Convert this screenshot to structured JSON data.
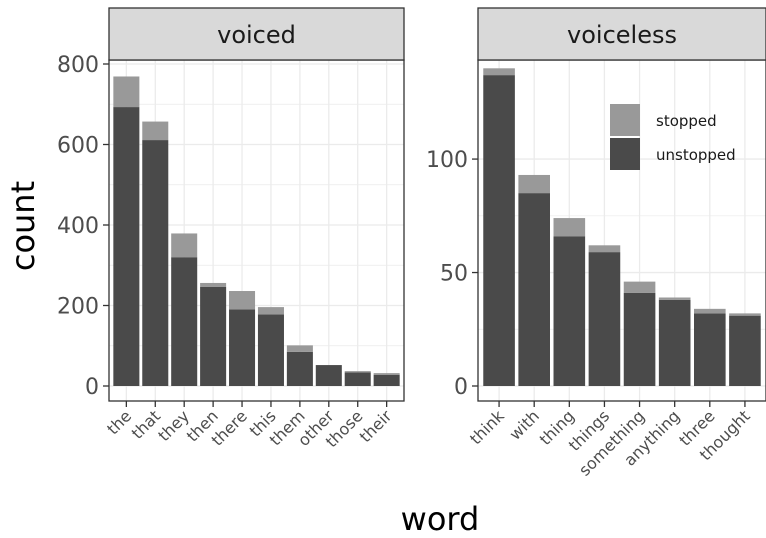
{
  "chart_data": {
    "type": "bar",
    "stacked": true,
    "xlabel": "word",
    "ylabel": "count",
    "grid": true,
    "legend_position": "top-right (inside voiceless panel)",
    "colors": {
      "stopped": "#999999",
      "unstopped": "#4a4a4a",
      "strip_fill": "#d9d9d9",
      "grid": "#ebebeb",
      "panel_border": "#333333"
    },
    "series_names": [
      "stopped",
      "unstopped"
    ],
    "panels": [
      {
        "name": "voiced",
        "ylim": [
          0,
          800
        ],
        "yticks": [
          "0",
          "200",
          "400",
          "600",
          "800"
        ],
        "categories": [
          "the",
          "that",
          "they",
          "then",
          "there",
          "this",
          "them",
          "other",
          "those",
          "their"
        ],
        "series": [
          {
            "name": "unstopped",
            "values": [
              693,
              611,
              320,
              246,
              190,
              178,
              85,
              52,
              34,
              28
            ]
          },
          {
            "name": "stopped",
            "values": [
              76,
              46,
              59,
              10,
              46,
              18,
              16,
              0,
              3,
              4
            ]
          }
        ]
      },
      {
        "name": "voiceless",
        "ylim": [
          0,
          140
        ],
        "yticks": [
          "0",
          "50",
          "100"
        ],
        "categories": [
          "think",
          "with",
          "thing",
          "things",
          "something",
          "anything",
          "three",
          "thought"
        ],
        "series": [
          {
            "name": "unstopped",
            "values": [
              137,
              85,
              66,
              59,
              41,
              38,
              32,
              31
            ]
          },
          {
            "name": "stopped",
            "values": [
              3,
              8,
              8,
              3,
              5,
              1,
              2,
              1
            ]
          }
        ]
      }
    ]
  }
}
